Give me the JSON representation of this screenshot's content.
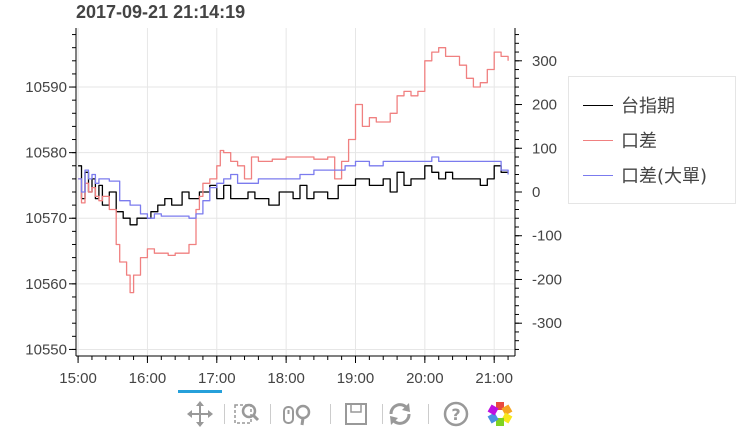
{
  "title": "2017-09-21 21:14:19",
  "colors": {
    "black": "#000000",
    "red": "#f08080",
    "blue": "#7b7bee",
    "grid": "#e6e6e6"
  },
  "toolbar": {
    "tools": [
      "pan-icon",
      "box-zoom-icon",
      "wheel-zoom-icon",
      "save-icon",
      "reset-icon",
      "help-icon",
      "bokeh-logo-icon"
    ],
    "active": "pan-icon"
  },
  "chart_data": {
    "type": "line",
    "title": "2017-09-21 21:14:19",
    "x_ticks": [
      "15:00",
      "16:00",
      "17:00",
      "18:00",
      "19:00",
      "20:00",
      "21:00"
    ],
    "x_range_hours": [
      14.97,
      21.3
    ],
    "y_left": {
      "ticks": [
        10550,
        10560,
        10570,
        10580,
        10590
      ],
      "range": [
        10549,
        10599
      ]
    },
    "y_right": {
      "ticks": [
        -300,
        -200,
        -100,
        0,
        100,
        200,
        300
      ],
      "range": [
        -375,
        375
      ]
    },
    "legend": [
      "台指期",
      "口差",
      "口差(大單)"
    ],
    "legend_position": "right",
    "series": [
      {
        "name": "台指期",
        "axis": "left",
        "color": "#000000",
        "x": [
          15.0,
          15.05,
          15.1,
          15.15,
          15.2,
          15.25,
          15.3,
          15.35,
          15.45,
          15.55,
          15.65,
          15.75,
          15.85,
          15.95,
          16.05,
          16.15,
          16.25,
          16.35,
          16.5,
          16.6,
          16.75,
          16.9,
          17.0,
          17.1,
          17.2,
          17.3,
          17.45,
          17.55,
          17.65,
          17.75,
          17.9,
          18.0,
          18.1,
          18.2,
          18.3,
          18.4,
          18.5,
          18.6,
          18.75,
          18.9,
          19.0,
          19.1,
          19.2,
          19.3,
          19.4,
          19.5,
          19.6,
          19.7,
          19.8,
          19.9,
          20.0,
          20.1,
          20.2,
          20.3,
          20.4,
          20.5,
          20.6,
          20.7,
          20.8,
          20.9,
          21.0,
          21.1,
          21.2
        ],
        "y": [
          10578,
          10573,
          10577,
          10574,
          10576,
          10573,
          10575,
          10572,
          10574,
          10571,
          10570,
          10569,
          10570,
          10570,
          10571,
          10572,
          10573,
          10572,
          10574,
          10573,
          10574,
          10575,
          10573,
          10575,
          10573,
          10573,
          10574,
          10573,
          10573,
          10572,
          10574,
          10574,
          10573,
          10575,
          10573,
          10574,
          10574,
          10573,
          10575,
          10575,
          10576,
          10576,
          10575,
          10575,
          10576,
          10574,
          10577,
          10575,
          10576,
          10576,
          10578,
          10577,
          10576,
          10577,
          10576,
          10576,
          10576,
          10576,
          10575,
          10576,
          10578,
          10577,
          10577
        ]
      },
      {
        "name": "口差",
        "axis": "right",
        "color": "#f08080",
        "x": [
          15.0,
          15.05,
          15.1,
          15.15,
          15.2,
          15.25,
          15.3,
          15.35,
          15.45,
          15.55,
          15.6,
          15.7,
          15.75,
          15.8,
          15.9,
          16.0,
          16.1,
          16.2,
          16.3,
          16.4,
          16.5,
          16.6,
          16.7,
          16.75,
          16.8,
          16.9,
          17.0,
          17.05,
          17.1,
          17.2,
          17.3,
          17.4,
          17.5,
          17.6,
          17.8,
          18.0,
          18.2,
          18.4,
          18.6,
          18.7,
          18.8,
          18.9,
          19.0,
          19.1,
          19.2,
          19.3,
          19.4,
          19.5,
          19.6,
          19.7,
          19.8,
          19.9,
          20.0,
          20.1,
          20.2,
          20.3,
          20.4,
          20.5,
          20.6,
          20.7,
          20.8,
          20.9,
          21.0,
          21.1,
          21.2
        ],
        "y": [
          30,
          -25,
          20,
          0,
          10,
          -10,
          -20,
          -10,
          -40,
          -120,
          -160,
          -190,
          -230,
          -190,
          -150,
          -130,
          -140,
          -140,
          -145,
          -140,
          -140,
          -120,
          -40,
          -10,
          20,
          30,
          60,
          95,
          90,
          70,
          60,
          30,
          80,
          70,
          75,
          80,
          80,
          75,
          80,
          30,
          70,
          120,
          200,
          150,
          170,
          160,
          160,
          180,
          220,
          230,
          220,
          230,
          300,
          320,
          330,
          310,
          310,
          290,
          260,
          240,
          250,
          280,
          320,
          310,
          300
        ]
      },
      {
        "name": "口差(大單)",
        "axis": "right",
        "color": "#7b7bee",
        "x": [
          15.0,
          15.05,
          15.1,
          15.15,
          15.2,
          15.25,
          15.3,
          15.45,
          15.6,
          15.75,
          15.9,
          16.0,
          16.1,
          16.2,
          16.4,
          16.6,
          16.7,
          16.8,
          16.9,
          17.0,
          17.1,
          17.2,
          17.3,
          17.45,
          17.6,
          17.8,
          18.0,
          18.2,
          18.4,
          18.55,
          18.7,
          18.85,
          19.0,
          19.2,
          19.4,
          19.6,
          19.8,
          20.0,
          20.1,
          20.2,
          20.4,
          20.6,
          20.8,
          21.0,
          21.1,
          21.2
        ],
        "y": [
          30,
          0,
          50,
          30,
          40,
          20,
          30,
          25,
          -20,
          -30,
          -50,
          -60,
          -50,
          -55,
          -55,
          -60,
          -50,
          -20,
          10,
          20,
          30,
          40,
          20,
          20,
          30,
          30,
          30,
          40,
          50,
          50,
          50,
          60,
          70,
          60,
          70,
          70,
          70,
          70,
          80,
          70,
          70,
          70,
          70,
          70,
          50,
          40
        ]
      }
    ]
  }
}
